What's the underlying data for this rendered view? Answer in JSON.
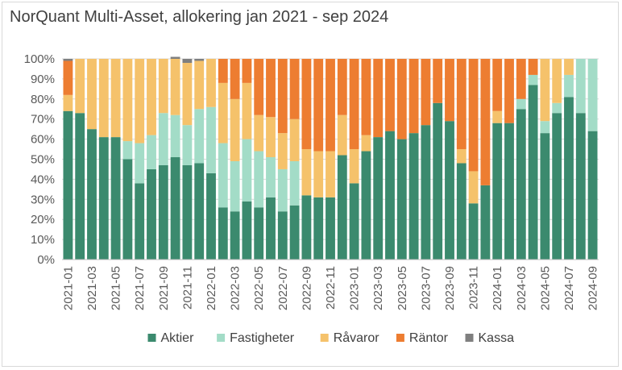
{
  "chart_data": {
    "type": "bar",
    "stacked": true,
    "title": "NorQuant Multi-Asset, allokering jan 2021 - sep 2024",
    "xlabel": "",
    "ylabel": "",
    "ylim": [
      0,
      100
    ],
    "y_ticks": [
      "0%",
      "10%",
      "20%",
      "30%",
      "40%",
      "50%",
      "60%",
      "70%",
      "80%",
      "90%",
      "100%"
    ],
    "x_tick_labels": [
      "2021-01",
      "2021-03",
      "2021-05",
      "2021-07",
      "2021-09",
      "2021-11",
      "2022-01",
      "2022-03",
      "2022-05",
      "2022-07",
      "2022-09",
      "2022-11",
      "2023-01",
      "2023-03",
      "2023-05",
      "2023-07",
      "2023-09",
      "2023-11",
      "2024-01",
      "2024-03",
      "2024-05",
      "2024-07",
      "2024-09"
    ],
    "grid": true,
    "legend_position": "bottom",
    "categories": [
      "2021-01",
      "2021-02",
      "2021-03",
      "2021-04",
      "2021-05",
      "2021-06",
      "2021-07",
      "2021-08",
      "2021-09",
      "2021-10",
      "2021-11",
      "2021-12",
      "2022-01",
      "2022-02",
      "2022-03",
      "2022-04",
      "2022-05",
      "2022-06",
      "2022-07",
      "2022-08",
      "2022-09",
      "2022-10",
      "2022-11",
      "2022-12",
      "2023-01",
      "2023-02",
      "2023-03",
      "2023-04",
      "2023-05",
      "2023-06",
      "2023-07",
      "2023-08",
      "2023-09",
      "2023-10",
      "2023-11",
      "2023-12",
      "2024-01",
      "2024-02",
      "2024-03",
      "2024-04",
      "2024-05",
      "2024-06",
      "2024-07",
      "2024-08",
      "2024-09"
    ],
    "series": [
      {
        "name": "Aktier",
        "color": "#3b8a6e",
        "values": [
          74,
          73,
          65,
          61,
          61,
          50,
          38,
          45,
          47,
          51,
          47,
          48,
          43,
          26,
          24,
          29,
          26,
          31,
          24,
          27,
          32,
          31,
          31,
          52,
          38,
          54,
          61,
          64,
          60,
          63,
          67,
          78,
          69,
          48,
          28,
          37,
          68,
          68,
          75,
          87,
          63,
          73,
          81,
          73,
          64
        ]
      },
      {
        "name": "Fastigheter",
        "color": "#a3dcc7",
        "values": [
          0,
          0,
          0,
          0,
          0,
          9,
          20,
          17,
          26,
          21,
          20,
          27,
          33,
          32,
          25,
          31,
          28,
          20,
          21,
          22,
          0,
          0,
          0,
          0,
          0,
          0,
          0,
          0,
          0,
          0,
          0,
          0,
          0,
          0,
          0,
          0,
          0,
          0,
          5,
          5,
          6,
          5,
          11,
          27,
          36
        ]
      },
      {
        "name": "Råvaror",
        "color": "#f5c26b",
        "values": [
          8,
          27,
          35,
          39,
          39,
          41,
          42,
          38,
          27,
          28,
          31,
          24,
          24,
          30,
          31,
          28,
          18,
          20,
          18,
          21,
          23,
          23,
          23,
          20,
          17,
          8,
          0,
          0,
          0,
          0,
          0,
          0,
          0,
          7,
          16,
          0,
          6,
          0,
          0,
          0,
          31,
          22,
          8,
          0,
          0
        ]
      },
      {
        "name": "Räntor",
        "color": "#ed7d31",
        "values": [
          17,
          0,
          0,
          0,
          0,
          0,
          0,
          0,
          0,
          0,
          0,
          0,
          0,
          12,
          20,
          12,
          28,
          29,
          37,
          30,
          45,
          46,
          46,
          28,
          45,
          38,
          39,
          36,
          40,
          37,
          33,
          22,
          31,
          45,
          56,
          63,
          26,
          32,
          20,
          8,
          0,
          0,
          0,
          0,
          0
        ]
      },
      {
        "name": "Kassa",
        "color": "#7f7f7f",
        "values": [
          1,
          0,
          0,
          0,
          0,
          0,
          0,
          0,
          0,
          1,
          2,
          1,
          0,
          0,
          0,
          0,
          0,
          0,
          0,
          0,
          0,
          0,
          0,
          0,
          0,
          0,
          0,
          0,
          0,
          0,
          0,
          0,
          0,
          0,
          0,
          0,
          0,
          0,
          0,
          0,
          0,
          0,
          0,
          0,
          0
        ]
      }
    ]
  }
}
